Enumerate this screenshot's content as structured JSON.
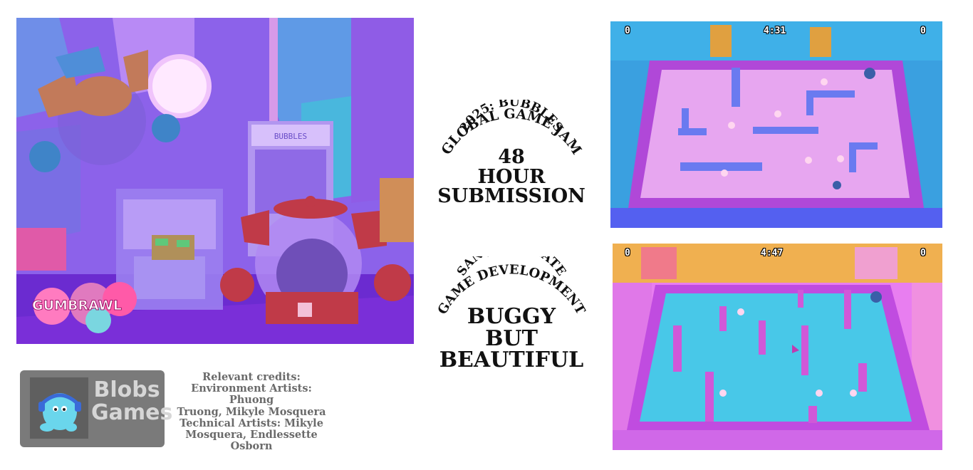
{
  "hero": {
    "logo_text": "GUMBRAWL",
    "machine_sign": "BUBBLES"
  },
  "jam": {
    "arc_line1": "2025: BUBBLES",
    "arc_line2": "GLOBAL GAME JAM",
    "big_lines": [
      "48",
      "HOUR",
      "SUBMISSION"
    ]
  },
  "school": {
    "arc_line1": "SAN JOSE STATE",
    "arc_line2": "GAME DEVELOPMENT",
    "big_lines": [
      "BUGGY",
      "BUT",
      "BEAUTIFUL"
    ]
  },
  "studio": {
    "name_line1": "Blobs",
    "name_line2": "Games"
  },
  "credits": {
    "lines": [
      "Relevant credits:",
      "Environment Artists: Phuong",
      "Truong, Mikyle Mosquera",
      "Technical Artists:  Mikyle",
      "Mosquera, Endlessette",
      "Osborn"
    ]
  },
  "screenshot1": {
    "score_left": "0",
    "timer": "4:31",
    "score_right": "0"
  },
  "screenshot2": {
    "score_left": "0",
    "timer": "4:47",
    "score_right": "0"
  },
  "colors": {
    "arena1_floor": "#e7a6f0",
    "arena2_floor": "#48c8e8",
    "arena_wall": "#b048d8",
    "hero_bg": "#8a5ee8"
  }
}
